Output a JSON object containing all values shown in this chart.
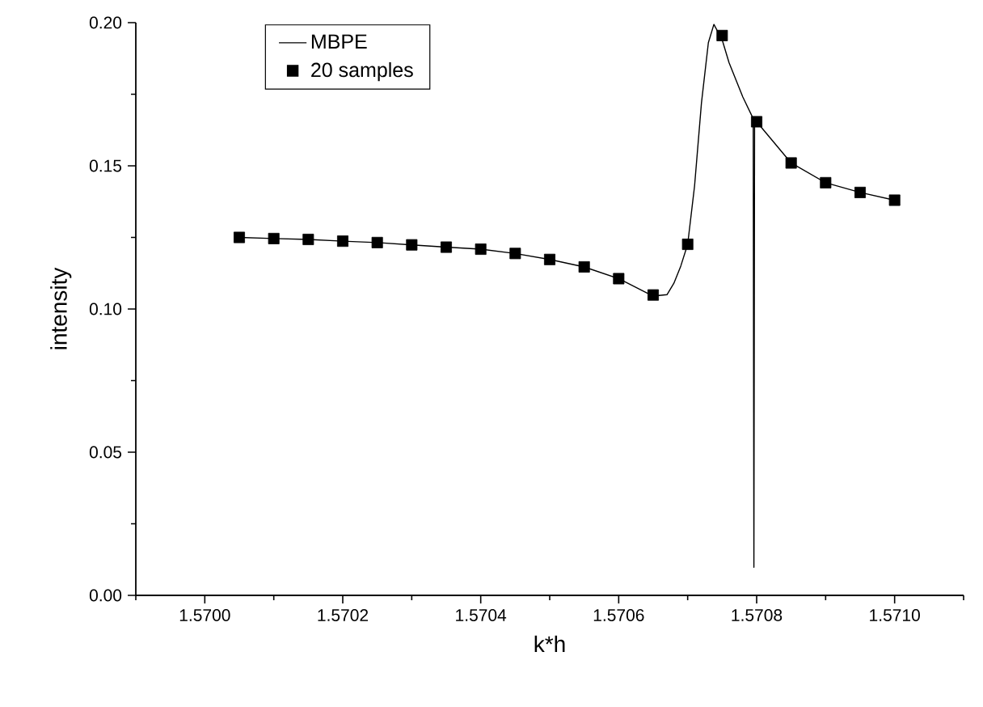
{
  "chart_data": {
    "type": "line",
    "xlabel": "k*h",
    "ylabel": "intensity",
    "xlim": [
      1.5699,
      1.5711
    ],
    "ylim": [
      0,
      0.2
    ],
    "xticks": [
      {
        "value": 1.5699,
        "label": null
      },
      {
        "value": 1.57,
        "label": "1.5700"
      },
      {
        "value": 1.5701,
        "label": null
      },
      {
        "value": 1.5702,
        "label": "1.5702"
      },
      {
        "value": 1.5703,
        "label": null
      },
      {
        "value": 1.5704,
        "label": "1.5704"
      },
      {
        "value": 1.5705,
        "label": null
      },
      {
        "value": 1.5706,
        "label": "1.5706"
      },
      {
        "value": 1.5707,
        "label": null
      },
      {
        "value": 1.5708,
        "label": "1.5708"
      },
      {
        "value": 1.5709,
        "label": null
      },
      {
        "value": 1.571,
        "label": "1.5710"
      },
      {
        "value": 1.5711,
        "label": null
      }
    ],
    "yticks": [
      {
        "value": 0,
        "label": "0.00"
      },
      {
        "value": 0.025,
        "label": null
      },
      {
        "value": 0.05,
        "label": "0.05"
      },
      {
        "value": 0.075,
        "label": null
      },
      {
        "value": 0.1,
        "label": "0.10"
      },
      {
        "value": 0.125,
        "label": null
      },
      {
        "value": 0.15,
        "label": "0.15"
      },
      {
        "value": 0.175,
        "label": null
      },
      {
        "value": 0.2,
        "label": "0.20"
      }
    ],
    "legend": "top left",
    "grid": false,
    "series": [
      {
        "name": "MBPE",
        "color": "#000000",
        "marker": "none",
        "line_style": "solid",
        "x": [
          1.57005,
          1.5701,
          1.57015,
          1.5702,
          1.57025,
          1.5703,
          1.57035,
          1.5704,
          1.57045,
          1.5705,
          1.57055,
          1.5706,
          1.57065,
          1.57067,
          1.57068,
          1.57069,
          1.5707,
          1.57071,
          1.57072,
          1.57073,
          1.570738,
          1.57075,
          1.57076,
          1.57078,
          1.570795,
          1.570796,
          1.570797,
          1.5708,
          1.57085,
          1.5709,
          1.57095,
          1.571
        ],
        "values": [
          0.125,
          0.1246,
          0.1243,
          0.1237,
          0.1232,
          0.1224,
          0.1216,
          0.1209,
          0.1194,
          0.1173,
          0.1147,
          0.1106,
          0.1045,
          0.105,
          0.109,
          0.115,
          0.1226,
          0.143,
          0.172,
          0.193,
          0.1994,
          0.194,
          0.186,
          0.174,
          0.1665,
          0.0098,
          0.1662,
          0.1654,
          0.151,
          0.1441,
          0.1407,
          0.138
        ]
      },
      {
        "name": "20 samples",
        "type": "scatter",
        "color": "#000000",
        "marker": "square",
        "x": [
          1.57005,
          1.5701,
          1.57015,
          1.5702,
          1.57025,
          1.5703,
          1.57035,
          1.5704,
          1.57045,
          1.5705,
          1.57055,
          1.5706,
          1.57065,
          1.5707,
          1.57075,
          1.5708,
          1.57085,
          1.5709,
          1.57095,
          1.571
        ],
        "values": [
          0.125,
          0.1246,
          0.1243,
          0.1237,
          0.1232,
          0.1224,
          0.1216,
          0.1209,
          0.1194,
          0.1173,
          0.1147,
          0.1106,
          0.1049,
          0.1226,
          0.1955,
          0.1654,
          0.151,
          0.1441,
          0.1407,
          0.138
        ]
      }
    ]
  }
}
